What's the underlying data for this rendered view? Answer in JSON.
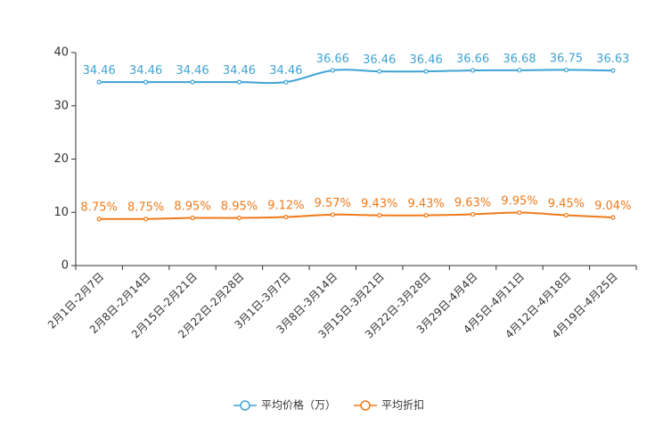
{
  "chart_data": {
    "type": "line",
    "title": "",
    "xlabel": "",
    "ylabel": "",
    "ylim": [
      0,
      40
    ],
    "yticks": [
      0,
      10,
      20,
      30,
      40
    ],
    "grid": false,
    "legend_position": "bottom-center",
    "categories": [
      "2月1日-2月7日",
      "2月8日-2月14日",
      "2月15日-2月21日",
      "2月22日-2月28日",
      "3月1日-3月7日",
      "3月8日-3月14日",
      "3月15日-3月21日",
      "3月22日-3月28日",
      "3月29日-4月4日",
      "4月5日-4月11日",
      "4月12日-4月18日",
      "4月19日-4月25日"
    ],
    "series": [
      {
        "name": "平均价格（万）",
        "color": "#3fa3d4",
        "values": [
          34.46,
          34.46,
          34.46,
          34.46,
          34.46,
          36.66,
          36.46,
          36.46,
          36.66,
          36.68,
          36.75,
          36.63
        ],
        "labels": [
          "34.46",
          "34.46",
          "34.46",
          "34.46",
          "34.46",
          "36.66",
          "36.46",
          "36.46",
          "36.66",
          "36.68",
          "36.75",
          "36.63"
        ]
      },
      {
        "name": "平均折扣",
        "color": "#f07a1a",
        "values": [
          8.75,
          8.75,
          8.95,
          8.95,
          9.12,
          9.57,
          9.43,
          9.43,
          9.63,
          9.95,
          9.45,
          9.04
        ],
        "labels": [
          "8.75%",
          "8.75%",
          "8.95%",
          "8.95%",
          "9.12%",
          "9.57%",
          "9.43%",
          "9.43%",
          "9.63%",
          "9.95%",
          "9.45%",
          "9.04%"
        ]
      }
    ]
  }
}
